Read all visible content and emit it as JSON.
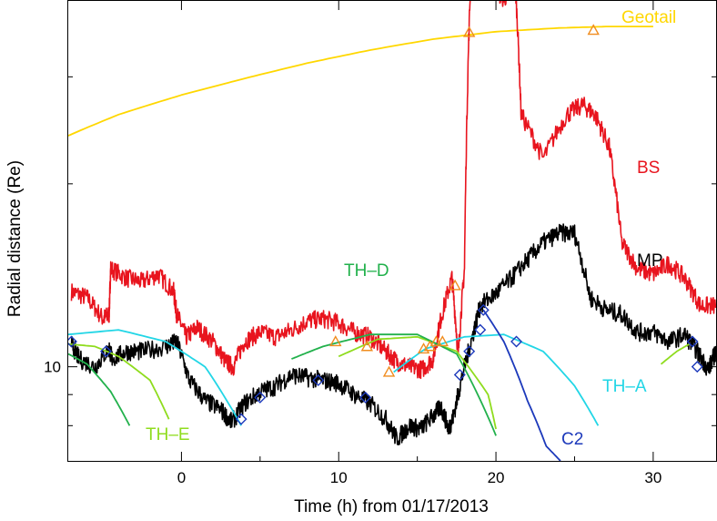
{
  "chart_data": {
    "type": "line",
    "title": "",
    "xlabel": "Time (h) from 01/17/2013",
    "ylabel": "Radial distance (Re)",
    "xlim": [
      -7.2,
      34
    ],
    "ylim": [
      7.0,
      40.0
    ],
    "y_scale": "log",
    "grid": false,
    "x_ticks": [
      {
        "v": 0,
        "label": "0"
      },
      {
        "v": 10,
        "label": "10"
      },
      {
        "v": 20,
        "label": "20"
      },
      {
        "v": 30,
        "label": "30"
      }
    ],
    "y_ticks": [
      {
        "v": 10,
        "label": "10"
      }
    ],
    "series": [
      {
        "name": "Geotail",
        "color": "#ffd700",
        "style": "smooth",
        "x": [
          -7.2,
          -4,
          0,
          4,
          8,
          12,
          16,
          20,
          24,
          27,
          30
        ],
        "y": [
          24.0,
          26.0,
          28.0,
          29.8,
          31.6,
          33.2,
          34.6,
          35.6,
          36.1,
          36.3,
          36.3
        ]
      },
      {
        "name": "BS",
        "color": "#e8141e",
        "style": "noisy",
        "x": [
          -7,
          -6,
          -5,
          -4.6,
          -4.5,
          -3.5,
          -2.5,
          -1.5,
          -0.5,
          -0.3,
          0.3,
          1,
          2,
          2.8,
          3.3,
          4,
          5,
          6,
          7,
          8,
          9,
          10,
          11,
          12,
          13,
          13.7,
          14.5,
          15.3,
          16,
          16.5,
          17.2,
          17.6,
          18.0,
          18.4,
          19.5,
          20.5,
          21.2,
          21.6,
          23,
          24.5,
          25.5,
          26.3,
          27.2,
          28,
          29,
          30,
          31,
          32,
          33,
          34
        ],
        "y": [
          13.3,
          13.0,
          12.0,
          12.2,
          14.5,
          14.0,
          13.8,
          14.2,
          13.3,
          12.2,
          11.2,
          11.6,
          11.0,
          10.2,
          10.0,
          11.0,
          11.4,
          11.2,
          11.5,
          11.9,
          12.0,
          11.8,
          11.4,
          11.2,
          10.6,
          10.2,
          10.0,
          9.9,
          10.3,
          12.0,
          14.0,
          10.4,
          14.5,
          44.0,
          44.0,
          40.0,
          44.0,
          26.0,
          22.0,
          26.0,
          27.0,
          26.0,
          23.0,
          16.0,
          14.5,
          14.2,
          14.8,
          14.0,
          12.6,
          12.6
        ]
      },
      {
        "name": "MP",
        "color": "#000000",
        "style": "noisy",
        "x": [
          -7,
          -6.5,
          -5.5,
          -4.6,
          -4.4,
          -3.5,
          -2.5,
          -1,
          -0.3,
          0.5,
          1.5,
          2.5,
          3.2,
          4,
          5,
          6,
          7,
          8,
          9,
          10,
          11,
          12,
          13,
          13.7,
          14.5,
          15.2,
          16,
          16.5,
          17,
          17.3,
          17.8,
          18.5,
          19,
          20,
          21,
          22,
          23,
          24,
          25,
          26,
          27,
          28,
          29,
          30,
          31,
          32,
          32.8,
          33.5,
          34
        ],
        "y": [
          10.9,
          10.3,
          10.0,
          10.7,
          10.3,
          10.6,
          10.6,
          10.8,
          11.0,
          9.5,
          8.8,
          8.5,
          8.1,
          8.7,
          9.1,
          9.3,
          9.7,
          9.6,
          9.5,
          9.4,
          9.0,
          8.7,
          8.2,
          7.6,
          8.0,
          7.9,
          8.3,
          8.6,
          7.9,
          8.3,
          9.5,
          11.2,
          12.6,
          13.2,
          14.0,
          15.0,
          16.0,
          16.6,
          16.6,
          13.0,
          12.4,
          12.2,
          11.4,
          11.4,
          11.0,
          11.3,
          10.6,
          9.9,
          10.6
        ]
      },
      {
        "name": "TH-A",
        "color": "#22d6e6",
        "style": "smooth",
        "x": [
          -7.2,
          -4,
          -1,
          1.5,
          3.8
        ],
        "y": [
          11.3,
          11.5,
          11.0,
          10.0,
          8.0
        ]
      },
      {
        "name": "TH-A",
        "color": "#22d6e6",
        "style": "smooth",
        "x": [
          13.5,
          15.5,
          18,
          20.5,
          23,
          25,
          26.5
        ],
        "y": [
          9.8,
          10.7,
          11.2,
          11.3,
          10.6,
          9.3,
          8.0
        ]
      },
      {
        "name": "TH-E",
        "color": "#8fdc1e",
        "style": "smooth",
        "x": [
          -7.2,
          -5.5,
          -4,
          -2,
          -0.8
        ],
        "y": [
          10.9,
          10.8,
          10.4,
          9.5,
          8.2
        ]
      },
      {
        "name": "TH-E",
        "color": "#8fdc1e",
        "style": "smooth",
        "x": [
          10,
          12.5,
          15,
          17.5,
          19.5,
          20.0
        ],
        "y": [
          10.4,
          11.1,
          11.2,
          10.6,
          9.0,
          7.9
        ]
      },
      {
        "name": "TH-E",
        "color": "#8fdc1e",
        "style": "smooth",
        "x": [
          30.5,
          31.5,
          32.3
        ],
        "y": [
          10.1,
          10.6,
          10.9
        ]
      },
      {
        "name": "TH-D",
        "color": "#22b14c",
        "style": "smooth",
        "x": [
          -7.2,
          -6,
          -4.5,
          -3.3
        ],
        "y": [
          10.5,
          10.1,
          9.1,
          8.0
        ]
      },
      {
        "name": "TH-D",
        "color": "#22b14c",
        "style": "smooth",
        "x": [
          7,
          9,
          12,
          15,
          17.5,
          20
        ],
        "y": [
          10.3,
          10.8,
          11.3,
          11.3,
          10.5,
          7.7
        ]
      },
      {
        "name": "C2",
        "color": "#1c39bb",
        "style": "smooth",
        "x": [
          19.2,
          20.5,
          22,
          23.2,
          24.1
        ],
        "y": [
          12.4,
          11.0,
          8.8,
          7.4,
          7.0
        ]
      }
    ],
    "diamonds": [
      {
        "x": -7.0,
        "y": 11.0
      },
      {
        "x": -4.8,
        "y": 10.6
      },
      {
        "x": 3.8,
        "y": 8.2
      },
      {
        "x": 5.0,
        "y": 8.9
      },
      {
        "x": 8.7,
        "y": 9.5
      },
      {
        "x": 11.7,
        "y": 8.9
      },
      {
        "x": 17.7,
        "y": 9.7
      },
      {
        "x": 18.3,
        "y": 10.6
      },
      {
        "x": 19.0,
        "y": 11.5
      },
      {
        "x": 19.2,
        "y": 12.4
      },
      {
        "x": 21.3,
        "y": 11.0
      },
      {
        "x": 32.5,
        "y": 11.0
      },
      {
        "x": 32.8,
        "y": 10.0
      }
    ],
    "triangles": [
      {
        "x": 9.8,
        "y": 11.0
      },
      {
        "x": 11.8,
        "y": 10.8
      },
      {
        "x": 13.2,
        "y": 9.8
      },
      {
        "x": 15.4,
        "y": 10.7
      },
      {
        "x": 15.8,
        "y": 10.8
      },
      {
        "x": 16.2,
        "y": 11.0
      },
      {
        "x": 16.6,
        "y": 11.0
      },
      {
        "x": 17.4,
        "y": 13.6
      },
      {
        "x": 18.3,
        "y": 35.5
      },
      {
        "x": 26.2,
        "y": 35.8
      }
    ],
    "labels": [
      {
        "text": "Geotail",
        "color": "#ffd700"
      },
      {
        "text": "BS",
        "color": "#e8141e"
      },
      {
        "text": "MP",
        "color": "#000000"
      },
      {
        "text": "TH–D",
        "color": "#22b14c"
      },
      {
        "text": "TH–A",
        "color": "#22d6e6"
      },
      {
        "text": "TH–E",
        "color": "#8fdc1e"
      },
      {
        "text": "C2",
        "color": "#1c39bb"
      }
    ],
    "marker_colors": {
      "diamond": "#1c39bb",
      "triangle": "#f08c1e"
    }
  }
}
